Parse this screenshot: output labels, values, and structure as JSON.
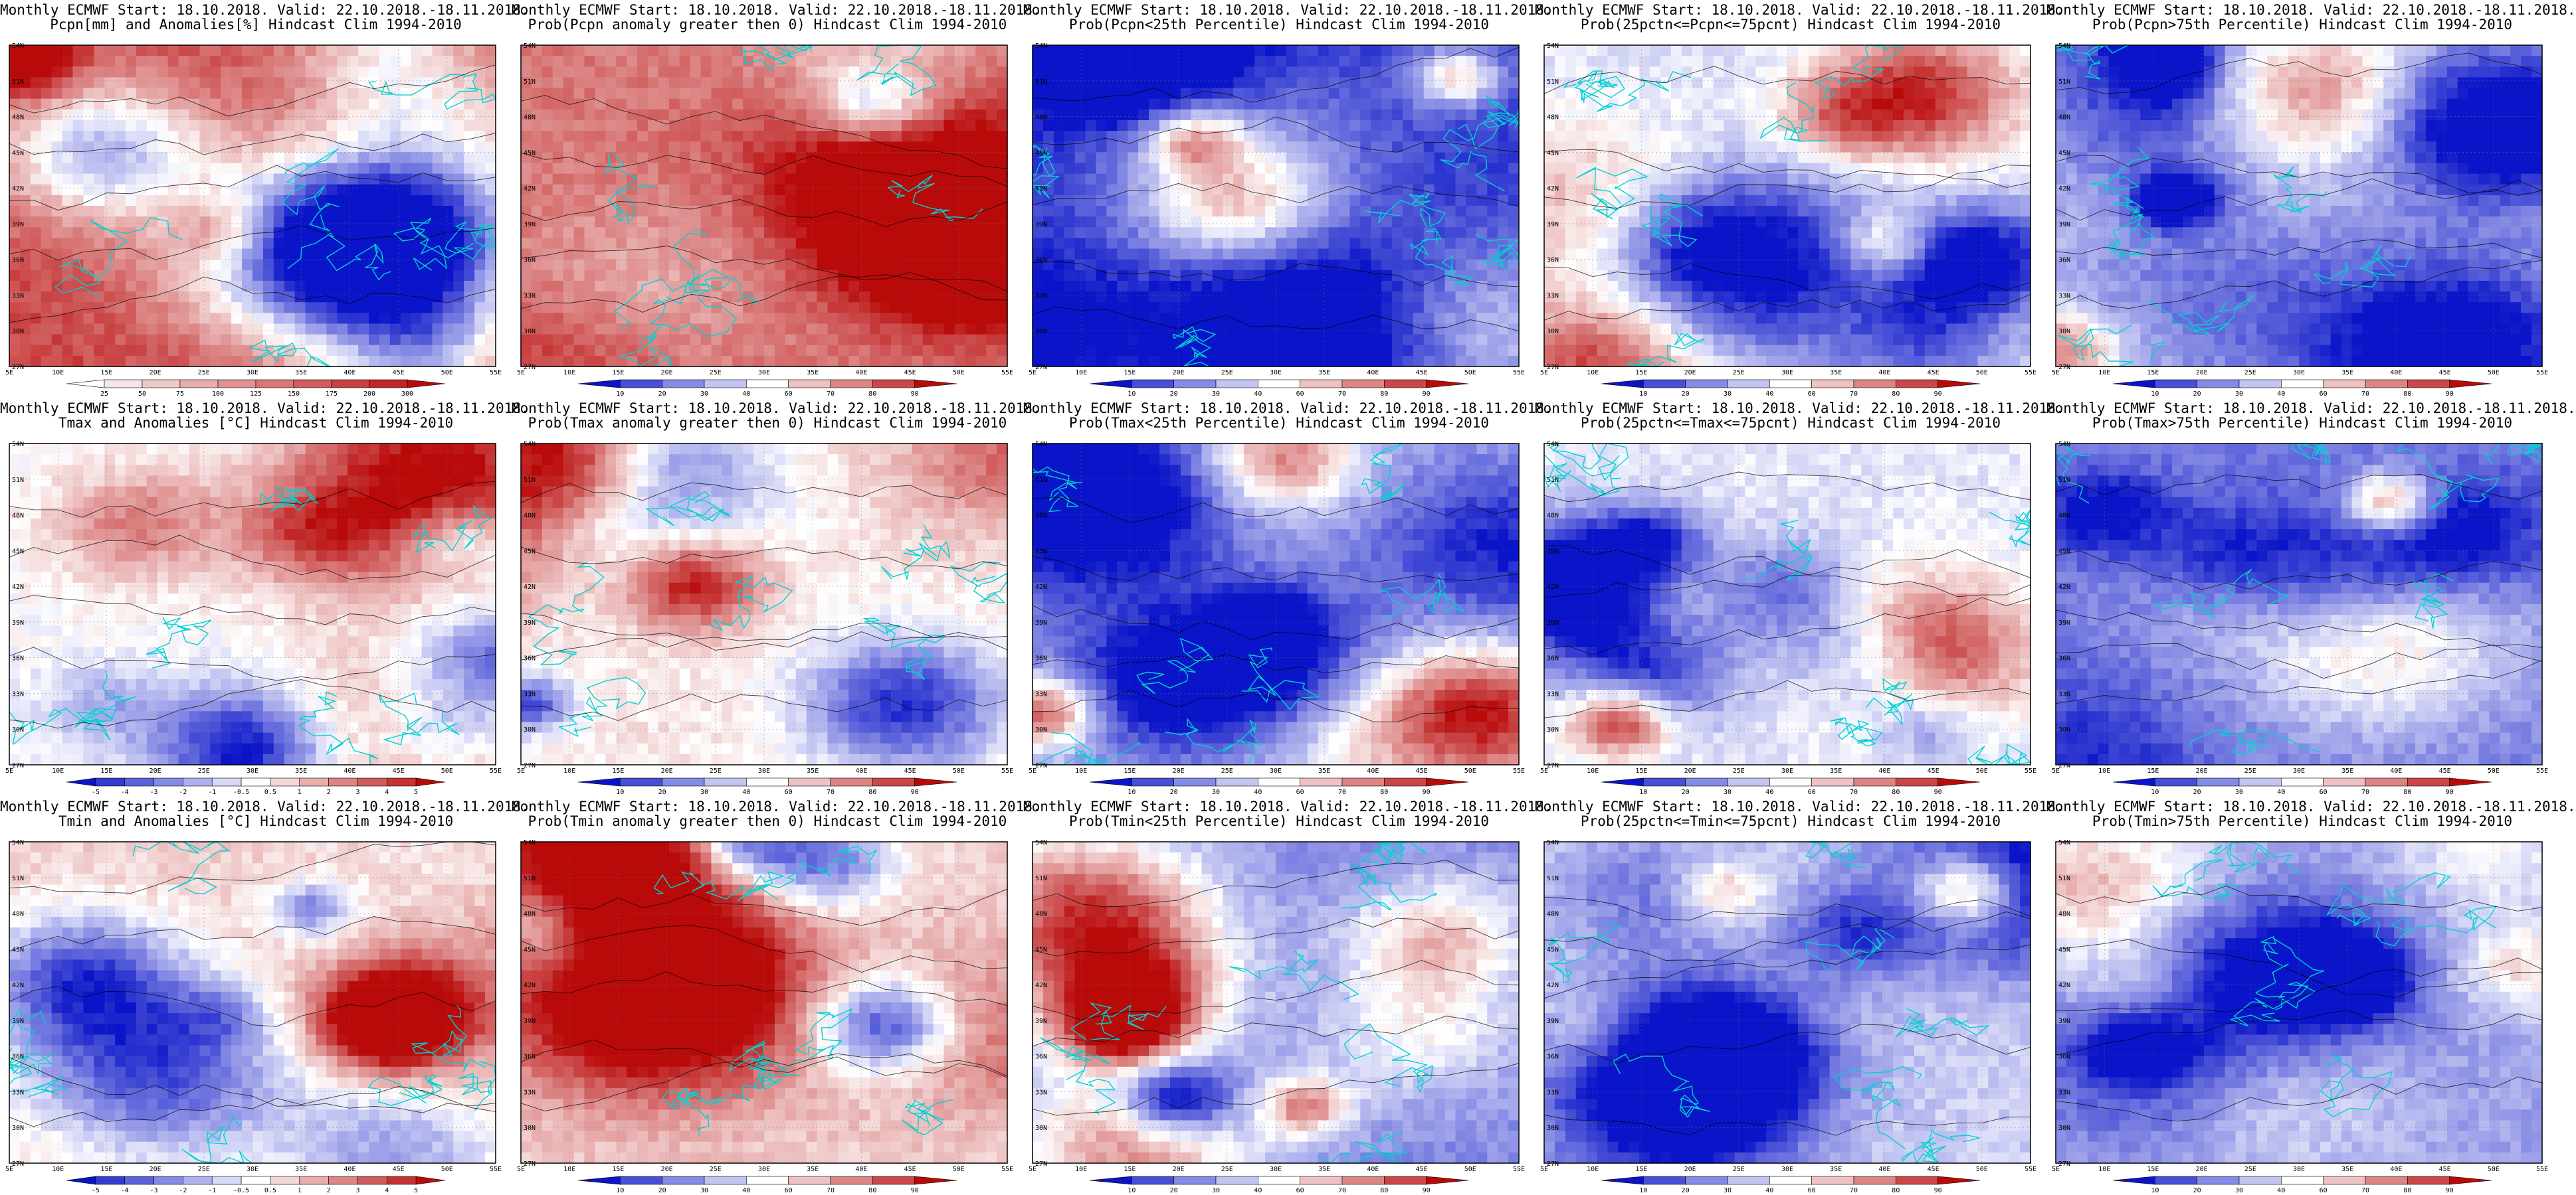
{
  "source_title": "Monthly ECMWF Start: 18.10.2018. Valid: 22.10.2018.-18.11.2018.",
  "lat_labels": [
    "27N",
    "30N",
    "33N",
    "36N",
    "39N",
    "42N",
    "45N",
    "48N",
    "51N",
    "54N"
  ],
  "lon_labels": [
    "5E",
    "10E",
    "15E",
    "20E",
    "25E",
    "30E",
    "35E",
    "40E",
    "45E",
    "50E",
    "55E"
  ],
  "colors": {
    "blue": "#0000c8",
    "white": "#ffffff",
    "red": "#b40000",
    "coast": "#00d2d2",
    "contour": "#000000"
  },
  "colorbars": {
    "precip": [
      "25",
      "50",
      "75",
      "100",
      "125",
      "150",
      "175",
      "200",
      "300"
    ],
    "temp": [
      "-5",
      "-4",
      "-3",
      "-2",
      "-1",
      "-0.5",
      "0.5",
      "1",
      "2",
      "3",
      "4",
      "5"
    ],
    "prob": [
      "10",
      "20",
      "30",
      "40",
      "60",
      "70",
      "80",
      "90"
    ]
  },
  "panels": [
    {
      "t1": "Monthly ECMWF Start: 18.10.2018. Valid: 22.10.2018.-18.11.2018.",
      "t2": "Pcpn[mm] and Anomalies[%] Hindcast Clim 1994-2010",
      "cb": "precip",
      "bias": 0.75,
      "seed": 11
    },
    {
      "t1": "Monthly ECMWF Start: 18.10.2018. Valid: 22.10.2018.-18.11.2018.",
      "t2": "Prob(Pcpn anomaly greater then 0) Hindcast Clim 1994-2010",
      "cb": "prob",
      "bias": 0.55,
      "seed": 12
    },
    {
      "t1": "Monthly ECMWF Start: 18.10.2018. Valid: 22.10.2018.-18.11.2018.",
      "t2": "Prob(Pcpn<25th Percentile) Hindcast Clim 1994-2010",
      "cb": "prob",
      "bias": -0.85,
      "seed": 13
    },
    {
      "t1": "Monthly ECMWF Start: 18.10.2018. Valid: 22.10.2018.-18.11.2018.",
      "t2": "Prob(25pctn<=Pcpn<=75pcnt) Hindcast Clim 1994-2010",
      "cb": "prob",
      "bias": -0.15,
      "seed": 14
    },
    {
      "t1": "Monthly ECMWF Start: 18.10.2018. Valid: 22.10.2018.-18.11.2018.",
      "t2": "Prob(Pcpn>75th Percentile) Hindcast Clim 1994-2010",
      "cb": "prob",
      "bias": -0.25,
      "seed": 15
    },
    {
      "t1": "Monthly ECMWF Start: 18.10.2018. Valid: 22.10.2018.-18.11.2018.",
      "t2": "Tmax and Anomalies [°C] Hindcast Clim 1994-2010",
      "cb": "temp",
      "bias": 0.0,
      "seed": 21
    },
    {
      "t1": "Monthly ECMWF Start: 18.10.2018. Valid: 22.10.2018.-18.11.2018.",
      "t2": "Prob(Tmax anomaly greater then 0) Hindcast Clim 1994-2010",
      "cb": "prob",
      "bias": 0.1,
      "seed": 22
    },
    {
      "t1": "Monthly ECMWF Start: 18.10.2018. Valid: 22.10.2018.-18.11.2018.",
      "t2": "Prob(Tmax<25th Percentile) Hindcast Clim 1994-2010",
      "cb": "prob",
      "bias": -0.35,
      "seed": 23
    },
    {
      "t1": "Monthly ECMWF Start: 18.10.2018. Valid: 22.10.2018.-18.11.2018.",
      "t2": "Prob(25pctn<=Tmax<=75pcnt) Hindcast Clim 1994-2010",
      "cb": "prob",
      "bias": -0.1,
      "seed": 24
    },
    {
      "t1": "Monthly ECMWF Start: 18.10.2018. Valid: 22.10.2018.-18.11.2018.",
      "t2": "Prob(Tmax>75th Percentile) Hindcast Clim 1994-2010",
      "cb": "prob",
      "bias": -0.55,
      "seed": 25
    },
    {
      "t1": "Monthly ECMWF Start: 18.10.2018. Valid: 22.10.2018.-18.11.2018.",
      "t2": "Tmin and Anomalies [°C] Hindcast Clim 1994-2010",
      "cb": "temp",
      "bias": 0.2,
      "seed": 31
    },
    {
      "t1": "Monthly ECMWF Start: 18.10.2018. Valid: 22.10.2018.-18.11.2018.",
      "t2": "Prob(Tmin anomaly greater then 0) Hindcast Clim 1994-2010",
      "cb": "prob",
      "bias": 0.2,
      "seed": 32
    },
    {
      "t1": "Monthly ECMWF Start: 18.10.2018. Valid: 22.10.2018.-18.11.2018.",
      "t2": "Prob(Tmin<25th Percentile) Hindcast Clim 1994-2010",
      "cb": "prob",
      "bias": -0.5,
      "seed": 33
    },
    {
      "t1": "Monthly ECMWF Start: 18.10.2018. Valid: 22.10.2018.-18.11.2018.",
      "t2": "Prob(25pctn<=Tmin<=75pcnt) Hindcast Clim 1994-2010",
      "cb": "prob",
      "bias": -0.2,
      "seed": 34
    },
    {
      "t1": "Monthly ECMWF Start: 18.10.2018. Valid: 22.10.2018.-18.11.2018.",
      "t2": "Prob(Tmin>75th Percentile) Hindcast Clim 1994-2010",
      "cb": "prob",
      "bias": -0.4,
      "seed": 35
    }
  ]
}
